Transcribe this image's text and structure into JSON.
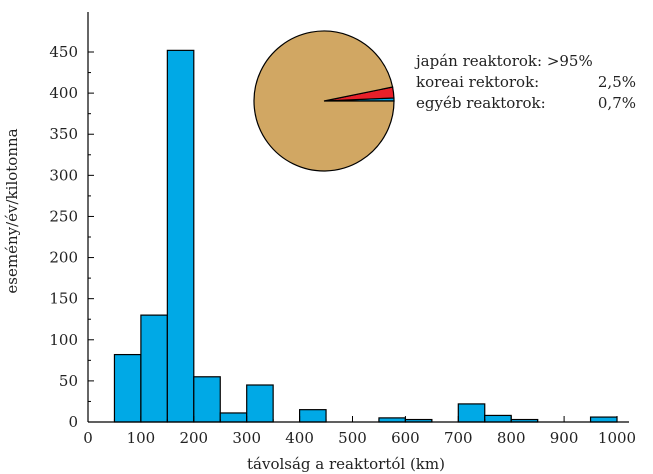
{
  "chart_data": [
    {
      "type": "bar",
      "subtype": "histogram",
      "xlabel": "távolság a reaktortól (km)",
      "ylabel": "esemény/év/kilotonna",
      "xlim": [
        0,
        1000
      ],
      "ylim": [
        0,
        460
      ],
      "xticks": [
        0,
        100,
        200,
        300,
        400,
        500,
        600,
        700,
        800,
        900,
        1000
      ],
      "yticks": [
        0,
        50,
        100,
        150,
        200,
        250,
        300,
        350,
        400,
        450
      ],
      "bin_width": 50,
      "bins": [
        {
          "x0": 50,
          "x1": 100,
          "value": 82
        },
        {
          "x0": 100,
          "x1": 150,
          "value": 130
        },
        {
          "x0": 150,
          "x1": 200,
          "value": 452
        },
        {
          "x0": 200,
          "x1": 250,
          "value": 55
        },
        {
          "x0": 250,
          "x1": 300,
          "value": 11
        },
        {
          "x0": 300,
          "x1": 350,
          "value": 45
        },
        {
          "x0": 350,
          "x1": 400,
          "value": 0
        },
        {
          "x0": 400,
          "x1": 450,
          "value": 15
        },
        {
          "x0": 450,
          "x1": 500,
          "value": 0
        },
        {
          "x0": 500,
          "x1": 550,
          "value": 0
        },
        {
          "x0": 550,
          "x1": 600,
          "value": 5
        },
        {
          "x0": 600,
          "x1": 650,
          "value": 3
        },
        {
          "x0": 650,
          "x1": 700,
          "value": 0
        },
        {
          "x0": 700,
          "x1": 750,
          "value": 22
        },
        {
          "x0": 750,
          "x1": 800,
          "value": 8
        },
        {
          "x0": 800,
          "x1": 850,
          "value": 3
        },
        {
          "x0": 850,
          "x1": 900,
          "value": 0
        },
        {
          "x0": 900,
          "x1": 950,
          "value": 0
        },
        {
          "x0": 950,
          "x1": 1000,
          "value": 6
        }
      ],
      "bar_color": "#00a9e6",
      "bar_edge_color": "#000000"
    },
    {
      "type": "pie",
      "legend_position": "right",
      "slices": [
        {
          "label": "japán reaktorok:",
          "value_label": ">95%",
          "value": 96.8,
          "color": "#d1a763"
        },
        {
          "label": "koreai rektorok:",
          "value_label": "2,5%",
          "value": 2.5,
          "color": "#e8202a"
        },
        {
          "label": "egyéb reaktorok:",
          "value_label": "0,7%",
          "value": 0.7,
          "color": "#00a9e6"
        }
      ]
    }
  ]
}
